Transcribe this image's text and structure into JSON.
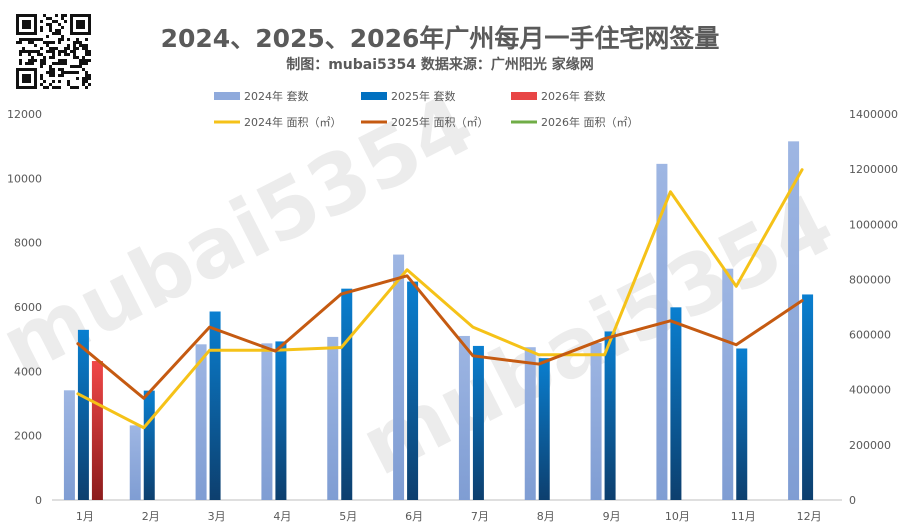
{
  "chart_data": {
    "type": "bar",
    "title": "2024、2025、2026年广州每月一手住宅网签量",
    "subtitle": "制图：mubai5354 数据来源：广州阳光 家缘网",
    "watermark": "mubai5354",
    "categories": [
      "1月",
      "2月",
      "3月",
      "4月",
      "5月",
      "6月",
      "7月",
      "8月",
      "9月",
      "10月",
      "11月",
      "12月"
    ],
    "y_left": {
      "range": [
        0,
        12000
      ],
      "ticks": [
        "0",
        "2000",
        "4000",
        "6000",
        "8000",
        "10000",
        "12000"
      ]
    },
    "y_right": {
      "range": [
        0,
        1400000
      ],
      "ticks": [
        "0",
        "200000",
        "400000",
        "600000",
        "800000",
        "1000000",
        "1200000",
        "1400000"
      ]
    },
    "bar_series": [
      {
        "name": "2024年 套数",
        "color": "#8faadc",
        "values": [
          3410,
          2320,
          4840,
          4870,
          5070,
          7630,
          5100,
          4750,
          4880,
          10450,
          7190,
          11150
        ]
      },
      {
        "name": "2025年 套数",
        "color": "#0070c0",
        "values": [
          5290,
          3400,
          5860,
          4930,
          6570,
          6790,
          4790,
          4410,
          5240,
          5990,
          4710,
          6390
        ]
      },
      {
        "name": "2026年 套数",
        "color": "#e84545",
        "values": [
          4320
        ]
      }
    ],
    "line_series": [
      {
        "name": "2024年 面积（㎡）",
        "color": "#f5c218",
        "values": [
          385000,
          262000,
          543000,
          543000,
          553000,
          835000,
          627000,
          527000,
          527000,
          1118000,
          775000,
          1198000
        ]
      },
      {
        "name": "2025年 面积（㎡）",
        "color": "#c55a11",
        "values": [
          567000,
          369000,
          627000,
          540000,
          747000,
          813000,
          523000,
          493000,
          585000,
          650000,
          563000,
          723000
        ]
      },
      {
        "name": "2026年 面积（㎡）",
        "color": "#70ad47",
        "values": []
      }
    ],
    "legend_position": "top",
    "grid": false
  }
}
